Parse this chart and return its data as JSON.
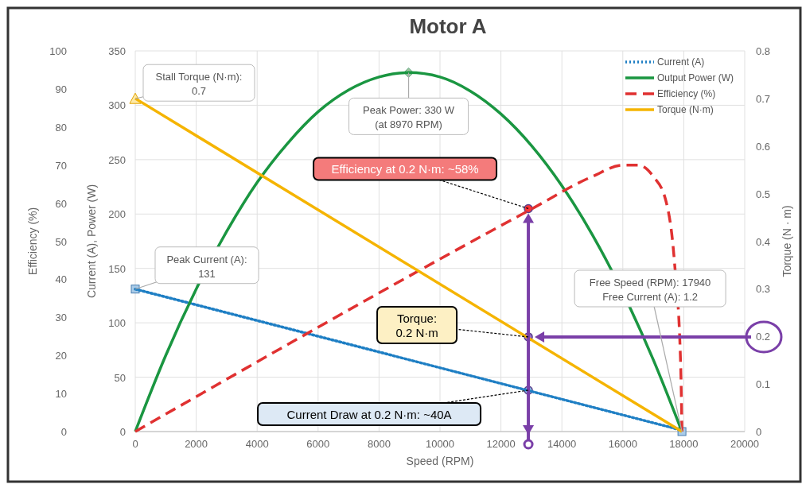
{
  "chart_data": {
    "type": "line",
    "title": "Motor A",
    "xlabel": "Speed (RPM)",
    "ylabel": "Current (A), Power (W)",
    "y2label": "Torque (N · m)",
    "y3label": "Efficiency (%)",
    "xlim": [
      0,
      20000
    ],
    "xticks": [
      0,
      2000,
      4000,
      6000,
      8000,
      10000,
      12000,
      14000,
      16000,
      18000,
      20000
    ],
    "ylim": [
      0,
      350
    ],
    "yticks": [
      0,
      50,
      100,
      150,
      200,
      250,
      300,
      350
    ],
    "y2lim": [
      0,
      0.8
    ],
    "y2ticks": [
      0,
      0.1,
      0.2,
      0.3,
      0.4,
      0.5,
      0.6,
      0.7,
      0.8
    ],
    "y3lim": [
      0,
      100
    ],
    "y3ticks": [
      0,
      10,
      20,
      30,
      40,
      50,
      60,
      70,
      80,
      90,
      100
    ],
    "grid": true,
    "legend": "top right",
    "series": [
      {
        "name": "Current (A)",
        "color": "#1f7fc4",
        "line_style": "dotted",
        "x": [
          0,
          17940
        ],
        "values": [
          131,
          1.2
        ]
      },
      {
        "name": "Output Power (W)",
        "color": "#1a9641",
        "line_style": "solid",
        "x": [
          0,
          1000,
          2000,
          3000,
          4000,
          5000,
          6000,
          7000,
          8000,
          8970,
          10000,
          11000,
          12000,
          13000,
          14000,
          15000,
          16000,
          17000,
          17940
        ],
        "values": [
          0,
          70,
          131,
          184,
          229,
          265,
          294,
          314,
          326,
          330,
          326,
          313,
          292,
          263,
          226,
          181,
          null,
          66,
          0
        ]
      },
      {
        "name": "Efficiency (%)",
        "color": "#e03131",
        "line_style": "dashed",
        "axis": "y3",
        "x": [
          0,
          12900,
          15000,
          16000,
          16500,
          17000,
          17400,
          17700,
          17900,
          17940
        ],
        "values": [
          0,
          58,
          67,
          70,
          70,
          67,
          61,
          44,
          17,
          0
        ]
      },
      {
        "name": "Torque (N·m)",
        "color": "#f5b400",
        "line_style": "solid",
        "axis": "y2",
        "x": [
          0,
          17940
        ],
        "values": [
          0.7,
          0
        ]
      }
    ],
    "annotations": [
      {
        "text": "Stall Torque (N·m):\n0.7",
        "x": 0,
        "y": 306
      },
      {
        "text": "Peak Power: 330 W\n(at 8970 RPM)",
        "x": 8970,
        "y": 330
      },
      {
        "text": "Peak Current (A):\n131",
        "x": 0,
        "y": 131
      },
      {
        "text": "Free Speed (RPM): 17940\nFree Current (A): 1.2",
        "x": 17940,
        "y": 0
      },
      {
        "text": "Efficiency at 0.2 N·m: ~58%",
        "x": 12900,
        "y": 205
      },
      {
        "text": "Torque:\n0.2 N·m",
        "x": 12900,
        "y": 87
      },
      {
        "text": "Current Draw at 0.2 N·m:  ~40A",
        "x": 12900,
        "y": 38
      }
    ]
  }
}
